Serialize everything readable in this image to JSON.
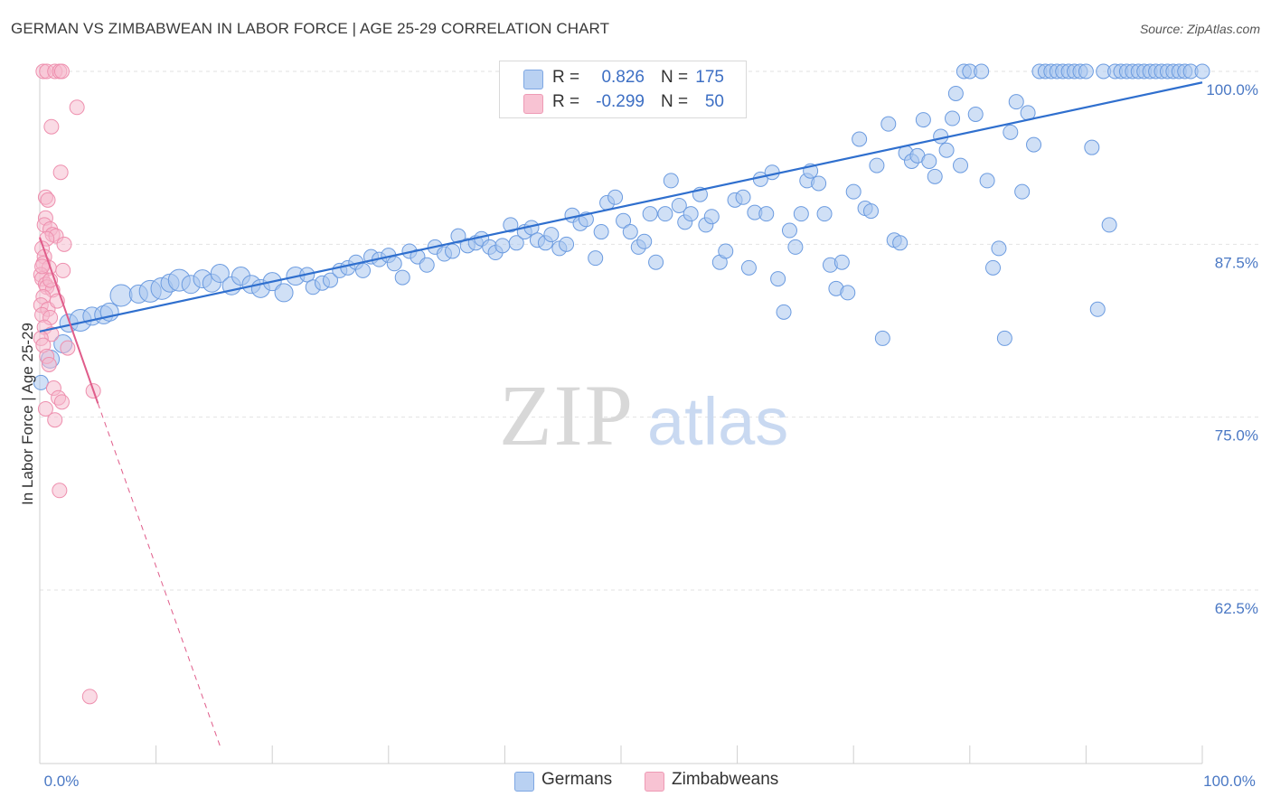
{
  "title": "GERMAN VS ZIMBABWEAN IN LABOR FORCE | AGE 25-29 CORRELATION CHART",
  "source": "Source: ZipAtlas.com",
  "watermark": {
    "zip": "ZIP",
    "atlas": "atlas"
  },
  "legend": {
    "germans": {
      "r_label": "R =",
      "r_value": "0.826",
      "n_label": "N =",
      "n_value": "175"
    },
    "zimbabweans": {
      "r_label": "R =",
      "r_value": "-0.299",
      "n_label": "N =",
      "n_value": "50"
    }
  },
  "bottom_legend": {
    "germans": "Germans",
    "zimbabweans": "Zimbabweans"
  },
  "colors": {
    "germans_fill": "#a9c6ef",
    "germans_stroke": "#6b9be0",
    "germans_line": "#2f6fce",
    "zim_fill": "#f6b8cb",
    "zim_stroke": "#ee8fae",
    "zim_line": "#e05c8a",
    "tick_text": "#4a78c4",
    "grid": "#e2e2e2"
  },
  "chart_data": {
    "type": "scatter",
    "ylabel": "In Labor Force | Age 25-29",
    "xlabel": "",
    "xlim": [
      0,
      100
    ],
    "ylim": [
      50,
      100.5
    ],
    "x_tick_labels": [
      {
        "v": 0,
        "label": "0.0%"
      },
      {
        "v": 100,
        "label": "100.0%"
      }
    ],
    "y_ticks": [
      {
        "v": 100,
        "label": "100.0%"
      },
      {
        "v": 87.5,
        "label": "87.5%"
      },
      {
        "v": 75,
        "label": "75.0%"
      },
      {
        "v": 62.5,
        "label": "62.5%"
      }
    ],
    "series": [
      {
        "name": "Germans",
        "r": 0.826,
        "n": 175,
        "trend": {
          "x0": 0,
          "y0": 81.2,
          "x1": 100,
          "y1": 99.2
        },
        "points": [
          [
            0.1,
            77.5,
            1
          ],
          [
            0.9,
            79.2,
            2
          ],
          [
            2.0,
            80.3,
            2
          ],
          [
            2.5,
            81.8,
            2
          ],
          [
            3.5,
            82.0,
            3
          ],
          [
            4.5,
            82.3,
            2
          ],
          [
            5.5,
            82.4,
            2
          ],
          [
            6.0,
            82.6,
            2
          ],
          [
            7.0,
            83.8,
            3
          ],
          [
            8.5,
            83.9,
            2
          ],
          [
            9.5,
            84.1,
            3
          ],
          [
            10.5,
            84.3,
            3
          ],
          [
            11.2,
            84.7,
            2
          ],
          [
            12.0,
            84.9,
            3
          ],
          [
            13.0,
            84.6,
            2
          ],
          [
            14.0,
            85.0,
            2
          ],
          [
            14.8,
            84.7,
            2
          ],
          [
            15.5,
            85.4,
            2
          ],
          [
            16.5,
            84.5,
            2
          ],
          [
            17.3,
            85.2,
            2
          ],
          [
            18.2,
            84.6,
            2
          ],
          [
            19.0,
            84.3,
            2
          ],
          [
            20.0,
            84.8,
            2
          ],
          [
            21.0,
            84.0,
            2
          ],
          [
            22.0,
            85.2,
            2
          ],
          [
            23.0,
            85.3,
            1
          ],
          [
            23.5,
            84.4,
            1
          ],
          [
            24.3,
            84.7,
            1
          ],
          [
            25.0,
            84.9,
            1
          ],
          [
            25.8,
            85.6,
            1
          ],
          [
            26.5,
            85.8,
            1
          ],
          [
            27.2,
            86.2,
            1
          ],
          [
            27.8,
            85.6,
            1
          ],
          [
            28.5,
            86.6,
            1
          ],
          [
            29.2,
            86.4,
            1
          ],
          [
            30.0,
            86.7,
            1
          ],
          [
            30.5,
            86.1,
            1
          ],
          [
            31.2,
            85.1,
            1
          ],
          [
            31.8,
            87.0,
            1
          ],
          [
            32.5,
            86.6,
            1
          ],
          [
            33.3,
            86.0,
            1
          ],
          [
            34.0,
            87.3,
            1
          ],
          [
            34.8,
            86.8,
            1
          ],
          [
            35.5,
            87.0,
            1
          ],
          [
            36.0,
            88.1,
            1
          ],
          [
            36.8,
            87.4,
            1
          ],
          [
            37.5,
            87.6,
            1
          ],
          [
            38.0,
            87.9,
            1
          ],
          [
            38.7,
            87.3,
            1
          ],
          [
            39.2,
            86.9,
            1
          ],
          [
            39.8,
            87.4,
            1
          ],
          [
            40.5,
            88.9,
            1
          ],
          [
            41.0,
            87.6,
            1
          ],
          [
            41.7,
            88.4,
            1
          ],
          [
            42.3,
            88.7,
            1
          ],
          [
            42.8,
            87.8,
            1
          ],
          [
            43.5,
            87.6,
            1
          ],
          [
            44.0,
            88.2,
            1
          ],
          [
            44.7,
            87.2,
            1
          ],
          [
            45.3,
            87.5,
            1
          ],
          [
            45.8,
            89.6,
            1
          ],
          [
            46.5,
            89.0,
            1
          ],
          [
            47.0,
            89.3,
            1
          ],
          [
            47.8,
            86.5,
            1
          ],
          [
            48.3,
            88.4,
            1
          ],
          [
            48.8,
            90.5,
            1
          ],
          [
            49.5,
            90.9,
            1
          ],
          [
            50.2,
            89.2,
            1
          ],
          [
            50.8,
            88.4,
            1
          ],
          [
            51.5,
            87.3,
            1
          ],
          [
            52.0,
            87.7,
            1
          ],
          [
            52.5,
            89.7,
            1
          ],
          [
            53.0,
            86.2,
            1
          ],
          [
            53.8,
            89.7,
            1
          ],
          [
            54.3,
            92.1,
            1
          ],
          [
            55.0,
            90.3,
            1
          ],
          [
            55.5,
            89.1,
            1
          ],
          [
            56.0,
            89.7,
            1
          ],
          [
            56.8,
            91.1,
            1
          ],
          [
            57.3,
            88.9,
            1
          ],
          [
            57.8,
            89.5,
            1
          ],
          [
            58.5,
            86.2,
            1
          ],
          [
            59.0,
            87.0,
            1
          ],
          [
            59.8,
            90.7,
            1
          ],
          [
            60.5,
            90.9,
            1
          ],
          [
            61.0,
            85.8,
            1
          ],
          [
            61.5,
            89.8,
            1
          ],
          [
            62.0,
            92.2,
            1
          ],
          [
            62.5,
            89.7,
            1
          ],
          [
            63.0,
            92.7,
            1
          ],
          [
            63.5,
            85.0,
            1
          ],
          [
            64.0,
            82.6,
            1
          ],
          [
            64.5,
            88.5,
            1
          ],
          [
            65.0,
            87.3,
            1
          ],
          [
            65.5,
            89.7,
            1
          ],
          [
            66.0,
            92.1,
            1
          ],
          [
            66.3,
            92.8,
            1
          ],
          [
            67.0,
            91.9,
            1
          ],
          [
            67.5,
            89.7,
            1
          ],
          [
            68.0,
            86.0,
            1
          ],
          [
            68.5,
            84.3,
            1
          ],
          [
            69.0,
            86.2,
            1
          ],
          [
            69.5,
            84.0,
            1
          ],
          [
            70.0,
            91.3,
            1
          ],
          [
            70.5,
            95.1,
            1
          ],
          [
            71.0,
            90.1,
            1
          ],
          [
            71.5,
            89.9,
            1
          ],
          [
            72.0,
            93.2,
            1
          ],
          [
            72.5,
            80.7,
            1
          ],
          [
            73.0,
            96.2,
            1
          ],
          [
            73.5,
            87.8,
            1
          ],
          [
            74.0,
            87.6,
            1
          ],
          [
            74.5,
            94.1,
            1
          ],
          [
            75.0,
            93.5,
            1
          ],
          [
            75.5,
            93.9,
            1
          ],
          [
            76.0,
            96.5,
            1
          ],
          [
            76.5,
            93.5,
            1
          ],
          [
            77.0,
            92.4,
            1
          ],
          [
            77.5,
            95.3,
            1
          ],
          [
            78.0,
            94.3,
            1
          ],
          [
            78.5,
            96.6,
            1
          ],
          [
            78.8,
            98.4,
            1
          ],
          [
            79.2,
            93.2,
            1
          ],
          [
            79.5,
            100.0,
            1
          ],
          [
            80.0,
            100.0,
            1
          ],
          [
            80.5,
            96.9,
            1
          ],
          [
            81.0,
            100.0,
            1
          ],
          [
            81.5,
            92.1,
            1
          ],
          [
            82.0,
            85.8,
            1
          ],
          [
            82.5,
            87.2,
            1
          ],
          [
            83.0,
            80.7,
            1
          ],
          [
            83.5,
            95.6,
            1
          ],
          [
            84.0,
            97.8,
            1
          ],
          [
            84.5,
            91.3,
            1
          ],
          [
            85.0,
            97.0,
            1
          ],
          [
            85.5,
            94.7,
            1
          ],
          [
            86.0,
            100.0,
            1
          ],
          [
            86.5,
            100.0,
            1
          ],
          [
            87.0,
            100.0,
            1
          ],
          [
            87.5,
            100.0,
            1
          ],
          [
            88.0,
            100.0,
            1
          ],
          [
            88.5,
            100.0,
            1
          ],
          [
            89.0,
            100.0,
            1
          ],
          [
            89.5,
            100.0,
            1
          ],
          [
            90.0,
            100.0,
            1
          ],
          [
            90.5,
            94.5,
            1
          ],
          [
            91.0,
            82.8,
            1
          ],
          [
            91.5,
            100.0,
            1
          ],
          [
            92.0,
            88.9,
            1
          ],
          [
            92.5,
            100.0,
            1
          ],
          [
            93.0,
            100.0,
            1
          ],
          [
            93.5,
            100.0,
            1
          ],
          [
            94.0,
            100.0,
            1
          ],
          [
            94.5,
            100.0,
            1
          ],
          [
            95.0,
            100.0,
            1
          ],
          [
            95.5,
            100.0,
            1
          ],
          [
            96.0,
            100.0,
            1
          ],
          [
            96.5,
            100.0,
            1
          ],
          [
            97.0,
            100.0,
            1
          ],
          [
            97.5,
            100.0,
            1
          ],
          [
            98.0,
            100.0,
            1
          ],
          [
            98.5,
            100.0,
            1
          ],
          [
            99.0,
            100.0,
            1
          ],
          [
            100.0,
            100.0,
            1
          ]
        ]
      },
      {
        "name": "Zimbabweans",
        "r": -0.299,
        "n": 50,
        "trend": {
          "x0": 0,
          "y0": 88.0,
          "x1": 5.0,
          "y1": 76.0,
          "dash_x1": 15.6,
          "dash_y1": 51.0
        },
        "points": [
          [
            0.3,
            100.0,
            1
          ],
          [
            0.6,
            100.0,
            1
          ],
          [
            1.3,
            100.0,
            1
          ],
          [
            1.7,
            100.0,
            1
          ],
          [
            1.9,
            100.0,
            1
          ],
          [
            3.2,
            97.4,
            1
          ],
          [
            1.0,
            96.0,
            1
          ],
          [
            1.8,
            92.7,
            1
          ],
          [
            0.5,
            90.9,
            1
          ],
          [
            0.7,
            90.7,
            1
          ],
          [
            0.5,
            89.4,
            1
          ],
          [
            0.4,
            88.9,
            1
          ],
          [
            0.9,
            88.6,
            1
          ],
          [
            1.1,
            88.2,
            1
          ],
          [
            1.4,
            88.1,
            1
          ],
          [
            0.6,
            87.9,
            1
          ],
          [
            2.1,
            87.5,
            1
          ],
          [
            0.2,
            87.2,
            1
          ],
          [
            0.4,
            86.6,
            1
          ],
          [
            0.3,
            86.1,
            1
          ],
          [
            0.8,
            85.8,
            1
          ],
          [
            2.0,
            85.6,
            1
          ],
          [
            0.1,
            85.3,
            1
          ],
          [
            0.2,
            85.0,
            1
          ],
          [
            0.5,
            84.6,
            1
          ],
          [
            0.6,
            84.4,
            1
          ],
          [
            1.1,
            84.2,
            1
          ],
          [
            0.3,
            83.7,
            1
          ],
          [
            0.1,
            83.1,
            1
          ],
          [
            0.7,
            82.8,
            1
          ],
          [
            0.2,
            82.4,
            1
          ],
          [
            0.9,
            82.2,
            1
          ],
          [
            0.4,
            81.5,
            1
          ],
          [
            1.0,
            81.0,
            1
          ],
          [
            0.1,
            80.7,
            1
          ],
          [
            0.3,
            80.2,
            1
          ],
          [
            0.6,
            79.4,
            1
          ],
          [
            0.8,
            78.8,
            1
          ],
          [
            1.2,
            77.1,
            1
          ],
          [
            1.6,
            76.4,
            1
          ],
          [
            1.9,
            76.1,
            1
          ],
          [
            4.6,
            76.9,
            1
          ],
          [
            0.5,
            75.6,
            1
          ],
          [
            1.3,
            74.8,
            1
          ],
          [
            1.7,
            69.7,
            1
          ],
          [
            4.3,
            54.8,
            1
          ],
          [
            0.2,
            85.9,
            1
          ],
          [
            0.9,
            84.9,
            1
          ],
          [
            1.5,
            83.4,
            1
          ],
          [
            2.4,
            80.0,
            1
          ]
        ]
      }
    ]
  }
}
